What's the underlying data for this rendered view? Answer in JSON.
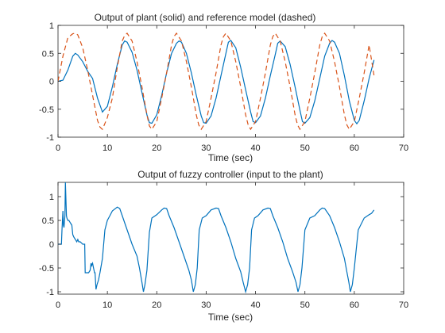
{
  "figure": {
    "background": "#ffffff"
  },
  "chart_data": [
    {
      "type": "line",
      "title": "Output of plant (solid) and reference model (dashed)",
      "xlabel": "Time (sec)",
      "ylabel": "",
      "xlim": [
        0,
        70
      ],
      "ylim": [
        -1,
        1
      ],
      "xticks": [
        "0",
        "10",
        "20",
        "30",
        "40",
        "50",
        "60",
        "70"
      ],
      "xtick_values": [
        0,
        10,
        20,
        30,
        40,
        50,
        60,
        70
      ],
      "yticks": [
        "-1",
        "-0.5",
        "0",
        "0.5",
        "1"
      ],
      "ytick_values": [
        -1,
        -0.5,
        0,
        0.5,
        1
      ],
      "grid": false,
      "series": [
        {
          "style": "solid",
          "color": "#0072bd",
          "x": [
            0,
            1,
            2,
            3,
            3.5,
            4,
            5,
            6,
            7,
            8,
            9,
            10,
            11,
            12,
            13,
            13.5,
            14,
            15,
            16,
            17,
            18,
            18.5,
            19,
            20,
            21,
            22,
            23,
            24,
            24.5,
            25,
            26,
            27,
            28,
            29,
            29.5,
            30,
            31,
            32,
            33,
            34,
            34.5,
            35,
            36,
            37,
            38,
            39,
            39.5,
            40,
            41,
            42,
            43,
            44,
            44.5,
            45,
            46,
            47,
            48,
            49,
            49.5,
            50,
            51,
            52,
            53,
            54,
            55,
            55.5,
            56,
            57,
            58,
            59,
            60,
            60.5,
            61,
            62,
            63,
            64
          ],
          "y": [
            0,
            0.02,
            0.2,
            0.45,
            0.5,
            0.47,
            0.35,
            0.18,
            0.05,
            -0.3,
            -0.55,
            -0.45,
            -0.1,
            0.3,
            0.65,
            0.72,
            0.7,
            0.52,
            0.2,
            -0.2,
            -0.6,
            -0.74,
            -0.75,
            -0.6,
            -0.25,
            0.15,
            0.5,
            0.68,
            0.72,
            0.7,
            0.5,
            0.15,
            -0.25,
            -0.62,
            -0.74,
            -0.75,
            -0.62,
            -0.3,
            0.1,
            0.5,
            0.7,
            0.73,
            0.6,
            0.25,
            -0.15,
            -0.55,
            -0.72,
            -0.74,
            -0.62,
            -0.3,
            0.1,
            0.48,
            0.68,
            0.72,
            0.62,
            0.3,
            -0.1,
            -0.52,
            -0.72,
            -0.75,
            -0.65,
            -0.35,
            0.05,
            0.45,
            0.68,
            0.73,
            0.7,
            0.5,
            0.1,
            -0.35,
            -0.7,
            -0.76,
            -0.7,
            -0.35,
            0.05,
            0.38
          ]
        },
        {
          "style": "dashed",
          "color": "#d95319",
          "x": [
            0,
            1,
            2,
            3,
            3.5,
            4,
            5,
            6,
            7,
            8,
            8.5,
            9,
            10,
            11,
            12,
            13,
            13.5,
            14,
            15,
            16,
            17,
            18,
            18.5,
            19,
            20,
            21,
            22,
            23,
            23.5,
            24,
            25,
            26,
            27,
            28,
            28.5,
            29,
            30,
            31,
            32,
            33,
            33.5,
            34,
            35,
            36,
            37,
            38,
            38.5,
            39,
            40,
            41,
            42,
            43,
            43.5,
            44,
            45,
            46,
            47,
            48,
            48.5,
            49,
            50,
            51,
            52,
            53,
            53.5,
            54,
            55,
            56,
            57,
            58,
            58.5,
            59,
            60,
            61,
            62,
            63,
            64
          ],
          "y": [
            0,
            0.45,
            0.78,
            0.85,
            0.86,
            0.83,
            0.6,
            0.2,
            -0.25,
            -0.7,
            -0.82,
            -0.86,
            -0.65,
            -0.3,
            0.25,
            0.72,
            0.82,
            0.86,
            0.72,
            0.35,
            -0.1,
            -0.6,
            -0.8,
            -0.86,
            -0.72,
            -0.3,
            0.15,
            0.65,
            0.8,
            0.86,
            0.72,
            0.35,
            -0.1,
            -0.6,
            -0.78,
            -0.86,
            -0.72,
            -0.3,
            0.15,
            0.65,
            0.8,
            0.86,
            0.72,
            0.35,
            -0.1,
            -0.6,
            -0.78,
            -0.86,
            -0.72,
            -0.3,
            0.15,
            0.65,
            0.8,
            0.86,
            0.72,
            0.35,
            -0.1,
            -0.6,
            -0.78,
            -0.86,
            -0.72,
            -0.3,
            0.15,
            0.65,
            0.8,
            0.86,
            0.72,
            0.35,
            -0.1,
            -0.6,
            -0.78,
            -0.86,
            -0.72,
            -0.3,
            0.15,
            0.65,
            0.1
          ]
        }
      ]
    },
    {
      "type": "line",
      "title": "Output of fuzzy controller (input to the plant)",
      "xlabel": "Time (sec)",
      "ylabel": "",
      "xlim": [
        0,
        70
      ],
      "ylim": [
        -1.05,
        1.3
      ],
      "xticks": [
        "0",
        "10",
        "20",
        "30",
        "40",
        "50",
        "60",
        "70"
      ],
      "xtick_values": [
        0,
        10,
        20,
        30,
        40,
        50,
        60,
        70
      ],
      "yticks": [
        "-1",
        "-0.5",
        "0",
        "0.5",
        "1"
      ],
      "ytick_values": [
        -1,
        -0.5,
        0,
        0.5,
        1
      ],
      "grid": false,
      "series": [
        {
          "style": "solid",
          "color": "#0072bd",
          "x": [
            0,
            0.7,
            0.8,
            1.0,
            1.1,
            1.2,
            1.4,
            1.5,
            1.7,
            1.8,
            2.0,
            2.2,
            2.5,
            2.8,
            3.0,
            3.2,
            3.5,
            3.8,
            4.0,
            4.2,
            4.5,
            5.0,
            5.4,
            5.5,
            5.8,
            6.0,
            6.2,
            6.5,
            6.7,
            6.8,
            7.0,
            7.2,
            7.4,
            7.5,
            7.7,
            7.9,
            8.2,
            8.5,
            9.0,
            9.5,
            10.0,
            10.5,
            11.0,
            12.0,
            12.5,
            13.0,
            14.0,
            15.0,
            16.0,
            16.5,
            17.0,
            17.3,
            17.6,
            18.0,
            18.5,
            19.0,
            20.0,
            21.0,
            21.5,
            22.0,
            22.5,
            23.5,
            24.5,
            25.5,
            26.5,
            27.0,
            27.4,
            27.8,
            28.2,
            28.6,
            29.2,
            30.0,
            31.0,
            32.0,
            32.5,
            33.0,
            34.0,
            35.0,
            36.0,
            37.0,
            37.5,
            38.0,
            38.4,
            38.8,
            39.2,
            39.8,
            40.5,
            41.5,
            42.5,
            43.0,
            43.5,
            44.5,
            45.5,
            46.5,
            47.5,
            48.2,
            48.6,
            49.0,
            49.4,
            50.0,
            51.0,
            52.0,
            53.0,
            53.5,
            54.0,
            55.0,
            56.0,
            57.0,
            58.0,
            58.5,
            58.9,
            59.2,
            59.6,
            60.0,
            60.8,
            62.0,
            63.0,
            63.5,
            64.0
          ],
          "y": [
            0,
            0,
            0.3,
            0.7,
            0.4,
            0.35,
            0.6,
            1.3,
            0.6,
            0.55,
            0.5,
            0.5,
            0.45,
            0.4,
            0.2,
            0.15,
            0.1,
            0.05,
            0.1,
            0.05,
            0.05,
            0.0,
            0.0,
            -0.6,
            -0.6,
            -0.6,
            -0.6,
            -0.55,
            -0.4,
            -0.45,
            -0.4,
            -0.5,
            -0.6,
            -0.6,
            -0.95,
            -0.85,
            -0.75,
            -0.6,
            -0.3,
            0.3,
            0.5,
            0.6,
            0.7,
            0.78,
            0.75,
            0.6,
            0.3,
            0.0,
            -0.25,
            -0.5,
            -0.8,
            -1.0,
            -0.85,
            -0.55,
            0.25,
            0.55,
            0.62,
            0.72,
            0.76,
            0.75,
            0.6,
            0.35,
            0.05,
            -0.25,
            -0.55,
            -0.75,
            -1.0,
            -0.85,
            -0.5,
            0.3,
            0.55,
            0.6,
            0.72,
            0.76,
            0.75,
            0.6,
            0.35,
            0.05,
            -0.3,
            -0.58,
            -0.8,
            -1.0,
            -0.85,
            -0.5,
            0.3,
            0.55,
            0.6,
            0.72,
            0.76,
            0.75,
            0.6,
            0.35,
            0.05,
            -0.3,
            -0.58,
            -0.8,
            -1.0,
            -0.85,
            -0.5,
            0.3,
            0.55,
            0.6,
            0.72,
            0.76,
            0.75,
            0.6,
            0.35,
            0.05,
            -0.3,
            -0.58,
            -0.8,
            -1.0,
            -0.85,
            -0.5,
            0.3,
            0.55,
            0.62,
            0.65,
            0.72
          ]
        }
      ]
    }
  ]
}
